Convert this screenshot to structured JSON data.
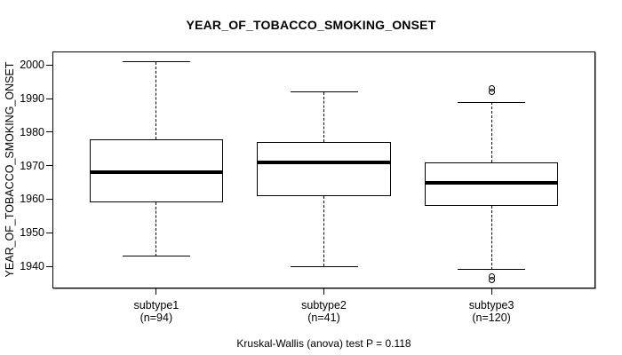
{
  "chart_data": {
    "type": "boxplot",
    "title": "YEAR_OF_TOBACCO_SMOKING_ONSET",
    "xlabel": "",
    "ylabel": "YEAR_OF_TOBACCO_SMOKING_ONSET",
    "footer": "Kruskal-Wallis (anova) test P = 0.118",
    "y_ticks": [
      2000,
      1990,
      1980,
      1970,
      1960,
      1950,
      1940
    ],
    "ylim": [
      1933.5,
      2004.2
    ],
    "grid": false,
    "legend": "none",
    "axis_color": "#000000",
    "box_fill": "#ffffff",
    "line_color": "#000000",
    "categories": [
      "subtype1",
      "subtype2",
      "subtype3"
    ],
    "category_counts": [
      "(n=94)",
      "(n=41)",
      "(n=120)"
    ],
    "series": [
      {
        "name": "subtype1",
        "n": 94,
        "whisker_low": 1943,
        "q1": 1959,
        "median": 1968,
        "q3": 1978,
        "whisker_high": 2001,
        "outliers": []
      },
      {
        "name": "subtype2",
        "n": 41,
        "whisker_low": 1940,
        "q1": 1961,
        "median": 1971,
        "q3": 1977,
        "whisker_high": 1992,
        "outliers": []
      },
      {
        "name": "subtype3",
        "n": 120,
        "whisker_low": 1939,
        "q1": 1958,
        "median": 1965,
        "q3": 1971,
        "whisker_high": 1989,
        "outliers": [
          1936,
          1937,
          1992,
          1993
        ]
      }
    ]
  }
}
